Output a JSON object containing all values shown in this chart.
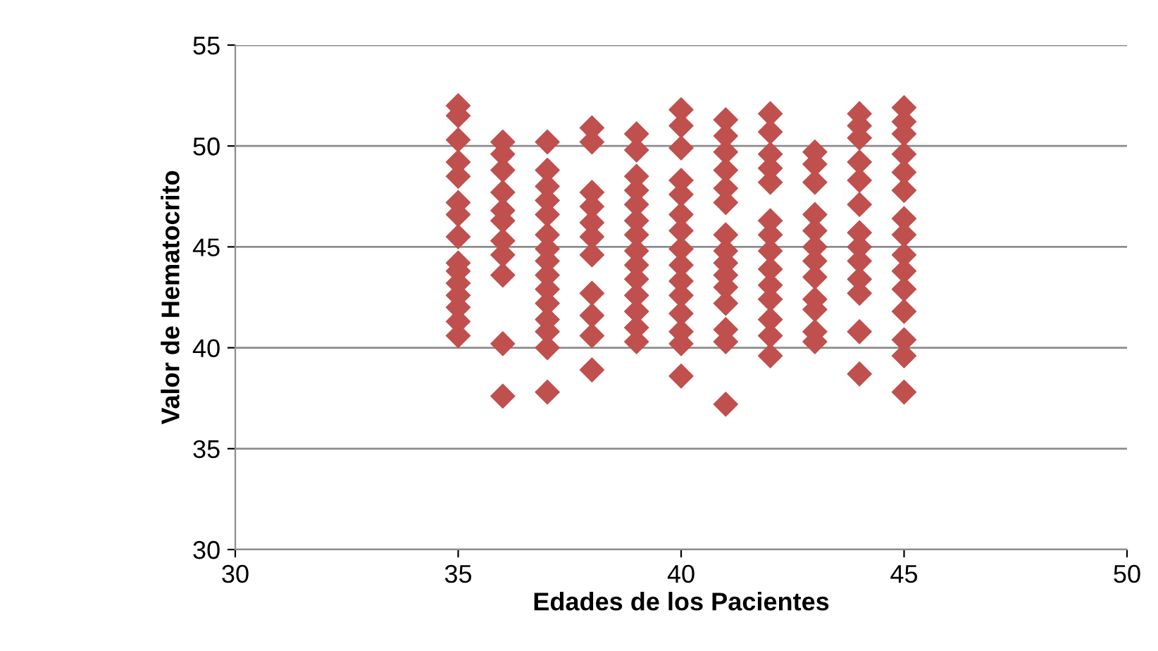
{
  "chart_data": {
    "type": "scatter",
    "xlabel": "Edades de los Pacientes",
    "ylabel": "Valor de Hematocrito",
    "xlim": [
      30,
      50
    ],
    "xticks": [
      30,
      35,
      40,
      45,
      50
    ],
    "ylim": [
      30,
      55
    ],
    "yticks": [
      30,
      35,
      40,
      45,
      50,
      55
    ],
    "grid": "y",
    "marker": "diamond",
    "legend": false,
    "series": [
      {
        "color": "#c0504d",
        "x": [
          35,
          35,
          35,
          35,
          35,
          35,
          35,
          35,
          35,
          35,
          35,
          35,
          35,
          35,
          35,
          36,
          36,
          36,
          36,
          36,
          36,
          36,
          36,
          36,
          36,
          36,
          37,
          37,
          37,
          37,
          37,
          37,
          37,
          37,
          37,
          37,
          37,
          37,
          37,
          37,
          37,
          38,
          38,
          38,
          38,
          38,
          38,
          38,
          38,
          38,
          38,
          38,
          39,
          39,
          39,
          39,
          39,
          39,
          39,
          39,
          39,
          39,
          39,
          39,
          39,
          39,
          40,
          40,
          40,
          40,
          40,
          40,
          40,
          40,
          40,
          40,
          40,
          40,
          40,
          40,
          40,
          41,
          41,
          41,
          41,
          41,
          41,
          41,
          41,
          41,
          41,
          41,
          41,
          41,
          41,
          41,
          42,
          42,
          42,
          42,
          42,
          42,
          42,
          42,
          42,
          42,
          42,
          42,
          42,
          42,
          43,
          43,
          43,
          43,
          43,
          43,
          43,
          43,
          43,
          43,
          43,
          43,
          44,
          44,
          44,
          44,
          44,
          44,
          44,
          44,
          44,
          44,
          44,
          44,
          44,
          45,
          45,
          45,
          45,
          45,
          45,
          45,
          45,
          45,
          45,
          45,
          45,
          45,
          45,
          45
        ],
        "values": [
          52,
          51.5,
          50.3,
          49.2,
          48.5,
          47.2,
          46.6,
          45.5,
          44.2,
          43.8,
          43.2,
          42.6,
          42,
          41.3,
          40.6,
          50.2,
          49.6,
          48.8,
          47.7,
          46.8,
          46.3,
          45.3,
          44.6,
          43.6,
          40.2,
          37.6,
          50.2,
          48.8,
          48,
          47.3,
          46.6,
          45.6,
          44.9,
          44.3,
          43.6,
          42.9,
          42.2,
          41.4,
          40.8,
          40,
          37.8,
          50.9,
          50.2,
          47.7,
          47,
          46.2,
          45.5,
          44.6,
          42.7,
          41.6,
          40.6,
          38.9,
          50.6,
          49.8,
          48.5,
          47.8,
          47.1,
          46.3,
          45.6,
          44.8,
          44.1,
          43.4,
          42.6,
          41.8,
          41,
          40.3,
          51.8,
          51,
          49.9,
          48.3,
          47.6,
          46.6,
          45.8,
          44.9,
          44.1,
          43.3,
          42.6,
          41.7,
          40.8,
          40.2,
          38.6,
          51.3,
          50.5,
          49.7,
          48.8,
          47.9,
          47.2,
          45.6,
          44.8,
          44.2,
          43.6,
          43,
          42.2,
          40.9,
          40.3,
          37.2,
          51.6,
          50.7,
          49.6,
          48.9,
          48.2,
          46.3,
          45.6,
          44.8,
          43.9,
          43.1,
          42.4,
          41.4,
          40.6,
          39.6,
          49.7,
          49.1,
          48.2,
          46.6,
          45.8,
          45,
          44.3,
          43.5,
          42.4,
          41.9,
          40.8,
          40.3,
          51.6,
          51,
          50.4,
          49.2,
          48.3,
          47.1,
          45.7,
          45,
          44.3,
          43.4,
          42.7,
          40.8,
          38.7,
          51.9,
          51.2,
          50.6,
          49.6,
          48.7,
          47.8,
          46.4,
          45.6,
          44.6,
          43.8,
          42.9,
          41.8,
          40.4,
          39.6,
          37.8
        ]
      }
    ]
  }
}
